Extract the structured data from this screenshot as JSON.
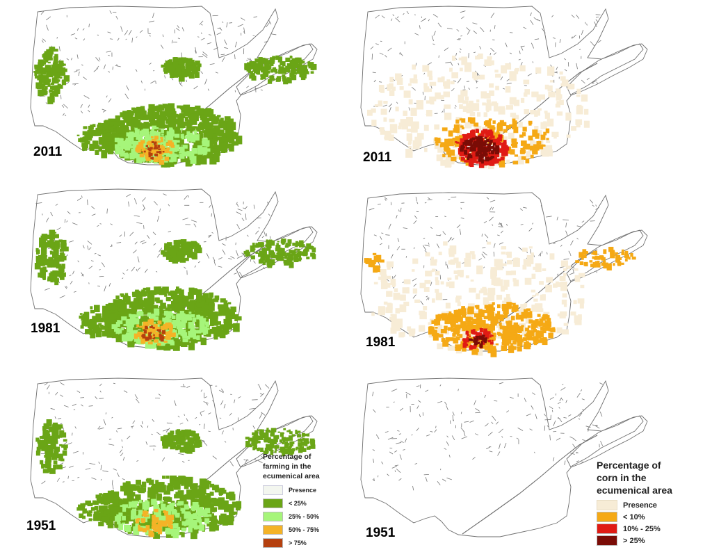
{
  "colors": {
    "outline": "#6e6e6e",
    "lakes": "#777777",
    "farming_lt25": "#6aa516",
    "farming_25_50": "#a6f57a",
    "farming_50_75": "#f4b327",
    "farming_gt75": "#b5400e",
    "corn_presence": "#f7ecd6",
    "corn_lt10": "#f5a915",
    "corn_10_25": "#e01b14",
    "corn_gt25": "#7a0c06"
  },
  "farming_maps": [
    {
      "year": "2011",
      "intensity": 0.95,
      "gt75": true
    },
    {
      "year": "1981",
      "intensity": 0.85,
      "gt75": true
    },
    {
      "year": "1951",
      "intensity": 0.75,
      "gt75": false
    }
  ],
  "corn_maps": [
    {
      "year": "2011",
      "presence": true,
      "lt10": true,
      "mid": "high"
    },
    {
      "year": "1981",
      "presence": true,
      "lt10": true,
      "mid": "medium"
    },
    {
      "year": "1951",
      "presence": false,
      "lt10": false,
      "mid": "none"
    }
  ],
  "legend_farming": {
    "title_line1": "Percentage of",
    "title_line2": "farming in the",
    "title_line3": "ecumenical area",
    "items": [
      "Presence",
      "< 25%",
      "25% - 50%",
      "50% - 75%",
      "> 75%"
    ]
  },
  "legend_corn": {
    "title_line1": "Percentage of",
    "title_line2": "corn in the",
    "title_line3": "ecumenical area",
    "items": [
      "Presence",
      "< 10%",
      "10% - 25%",
      "> 25%"
    ]
  }
}
